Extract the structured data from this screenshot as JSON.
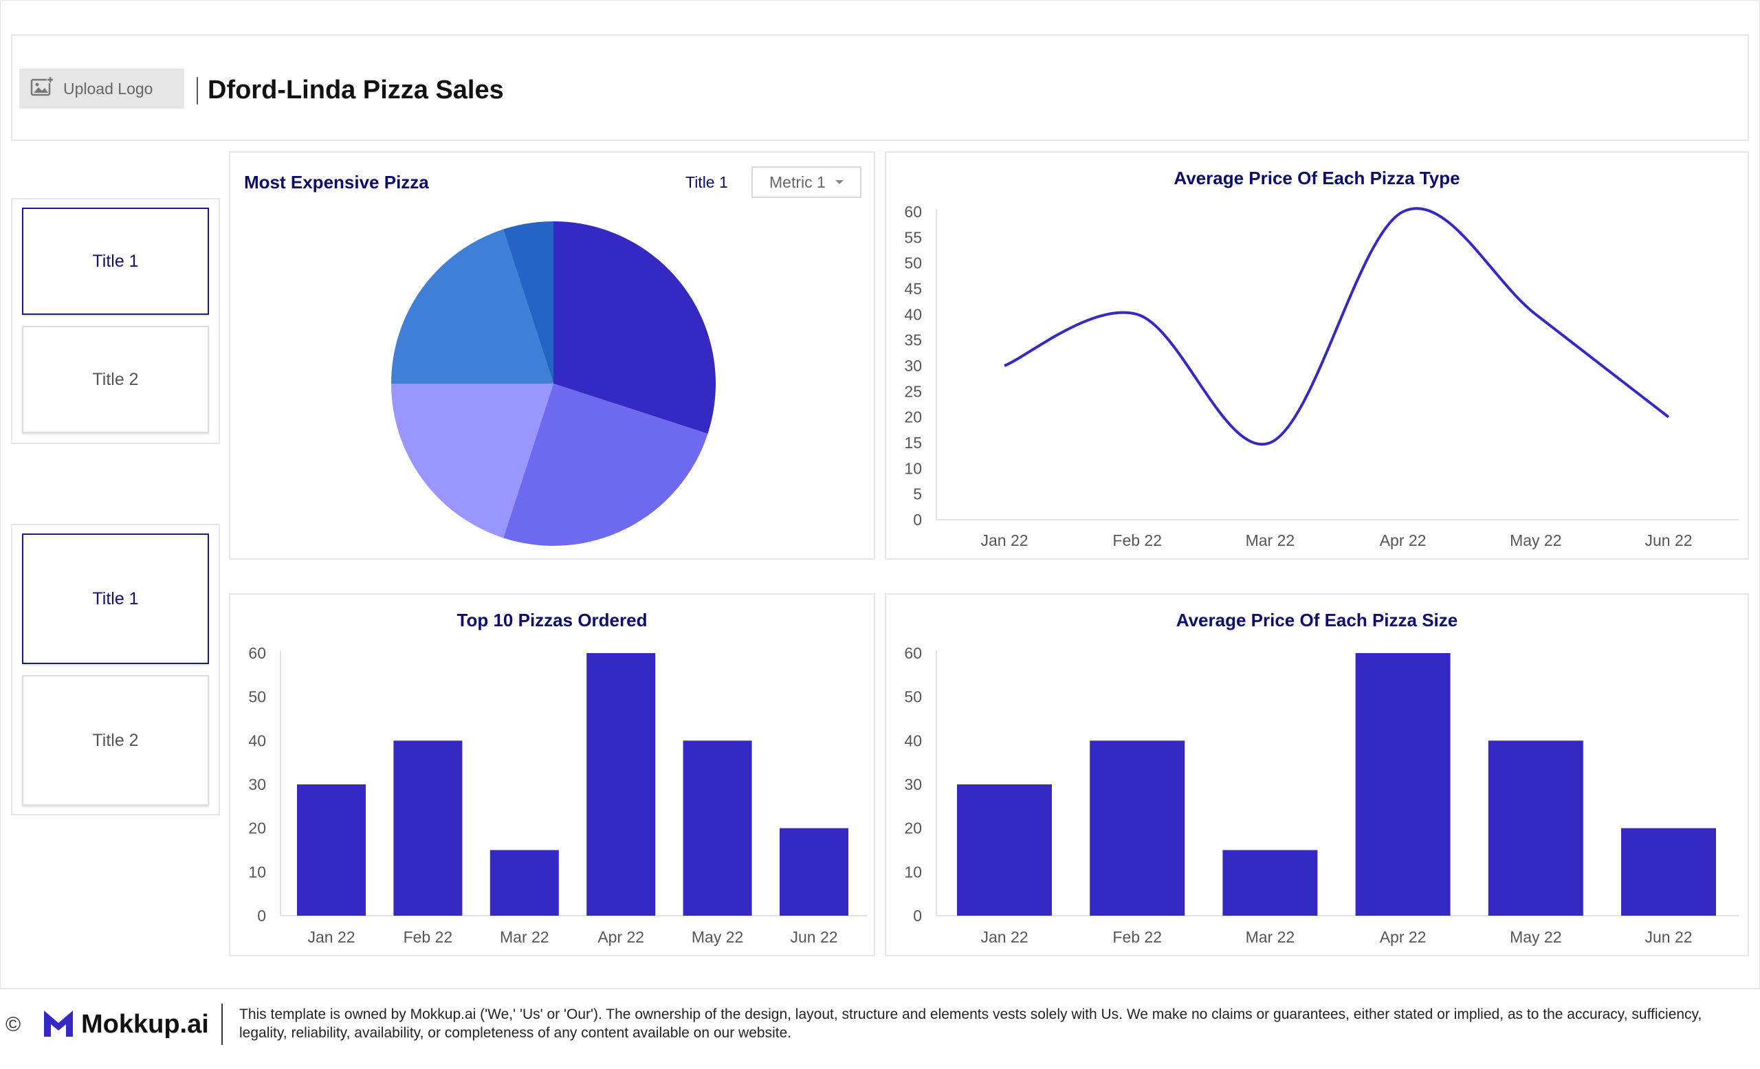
{
  "header": {
    "logo_label": "Upload Logo",
    "page_title": "Dford-Linda Pizza Sales"
  },
  "sidebar": {
    "group1": [
      {
        "label": "Title 1"
      },
      {
        "label": "Title 2"
      }
    ],
    "group2": [
      {
        "label": "Title 1"
      },
      {
        "label": "Title 2"
      }
    ]
  },
  "pie_panel": {
    "title": "Most Expensive Pizza",
    "metric_label": "Title 1",
    "dropdown_value": "Metric 1"
  },
  "footer": {
    "copyright": "©",
    "brand": "Mokkup.ai",
    "disclaimer": "This template is owned by Mokkup.ai ('We,' 'Us' or 'Our'). The ownership of the design, layout, structure and elements vests solely with Us. We make no claims or guarantees, either stated or implied, as to the accuracy, sufficiency, legality, reliability, availability, or completeness of any content available on our website."
  },
  "colors": {
    "primary": "#3429c3",
    "pie": [
      "#3429c3",
      "#6e6aef",
      "#9a96ff",
      "#3f7fd8",
      "#2464c4"
    ]
  },
  "chart_data": [
    {
      "id": "pie",
      "type": "pie",
      "title": "Most Expensive Pizza",
      "values": [
        30,
        25,
        20,
        20,
        5
      ]
    },
    {
      "id": "line",
      "type": "line",
      "title": "Average Price Of Each Pizza Type",
      "categories": [
        "Jan 22",
        "Feb 22",
        "Mar 22",
        "Apr 22",
        "May 22",
        "Jun 22"
      ],
      "values": [
        30,
        40,
        15,
        60,
        40,
        20
      ],
      "ylim": [
        0,
        60
      ],
      "yticks": [
        0,
        5,
        10,
        15,
        20,
        25,
        30,
        35,
        40,
        45,
        50,
        55,
        60
      ]
    },
    {
      "id": "bar1",
      "type": "bar",
      "title": "Top 10 Pizzas Ordered",
      "categories": [
        "Jan 22",
        "Feb 22",
        "Mar 22",
        "Apr 22",
        "May 22",
        "Jun 22"
      ],
      "values": [
        30,
        40,
        15,
        60,
        40,
        20
      ],
      "ylim": [
        0,
        60
      ],
      "yticks": [
        0,
        10,
        20,
        30,
        40,
        50,
        60
      ]
    },
    {
      "id": "bar2",
      "type": "bar",
      "title": "Average Price Of Each Pizza Size",
      "categories": [
        "Jan 22",
        "Feb 22",
        "Mar 22",
        "Apr 22",
        "May 22",
        "Jun 22"
      ],
      "values": [
        30,
        40,
        15,
        60,
        40,
        20
      ],
      "ylim": [
        0,
        60
      ],
      "yticks": [
        0,
        10,
        20,
        30,
        40,
        50,
        60
      ]
    }
  ]
}
